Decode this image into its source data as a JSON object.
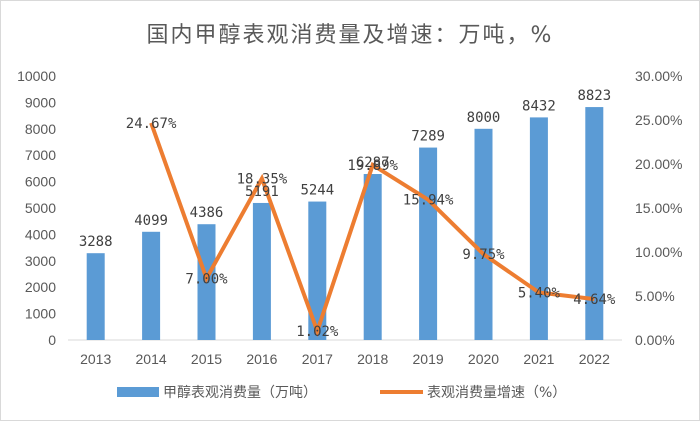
{
  "chart_data": {
    "type": "bar",
    "title": "国内甲醇表观消费量及增速：万吨，%",
    "categories": [
      "2013",
      "2014",
      "2015",
      "2016",
      "2017",
      "2018",
      "2019",
      "2020",
      "2021",
      "2022"
    ],
    "series": [
      {
        "name": "甲醇表观消费量（万吨）",
        "type": "bar",
        "axis": "left",
        "color": "#5b9bd5",
        "values": [
          3288,
          4099,
          4386,
          5191,
          5244,
          6287,
          7289,
          8000,
          8432,
          8823
        ],
        "labels": [
          "3288",
          "4099",
          "4386",
          "5191",
          "5244",
          "6287",
          "7289",
          "8000",
          "8432",
          "8823"
        ]
      },
      {
        "name": "表观消费量增速（%）",
        "type": "line",
        "axis": "right",
        "color": "#ed7d31",
        "values": [
          null,
          24.67,
          7.0,
          18.35,
          1.02,
          19.89,
          15.94,
          9.75,
          5.4,
          4.64
        ],
        "labels": [
          "",
          "24.67%",
          "7.00%",
          "18.35%",
          "1.02%",
          "19.89%",
          "15.94%",
          "9.75%",
          "5.40%",
          "4.64%"
        ]
      }
    ],
    "ylim_left": [
      0,
      10000
    ],
    "yticks_left": [
      "0",
      "1000",
      "2000",
      "3000",
      "4000",
      "5000",
      "6000",
      "7000",
      "8000",
      "9000",
      "10000"
    ],
    "ylim_right": [
      0,
      30
    ],
    "yticks_right": [
      "0.00%",
      "5.00%",
      "10.00%",
      "15.00%",
      "20.00%",
      "25.00%",
      "30.00%"
    ],
    "grid": false,
    "legend_position": "bottom"
  }
}
